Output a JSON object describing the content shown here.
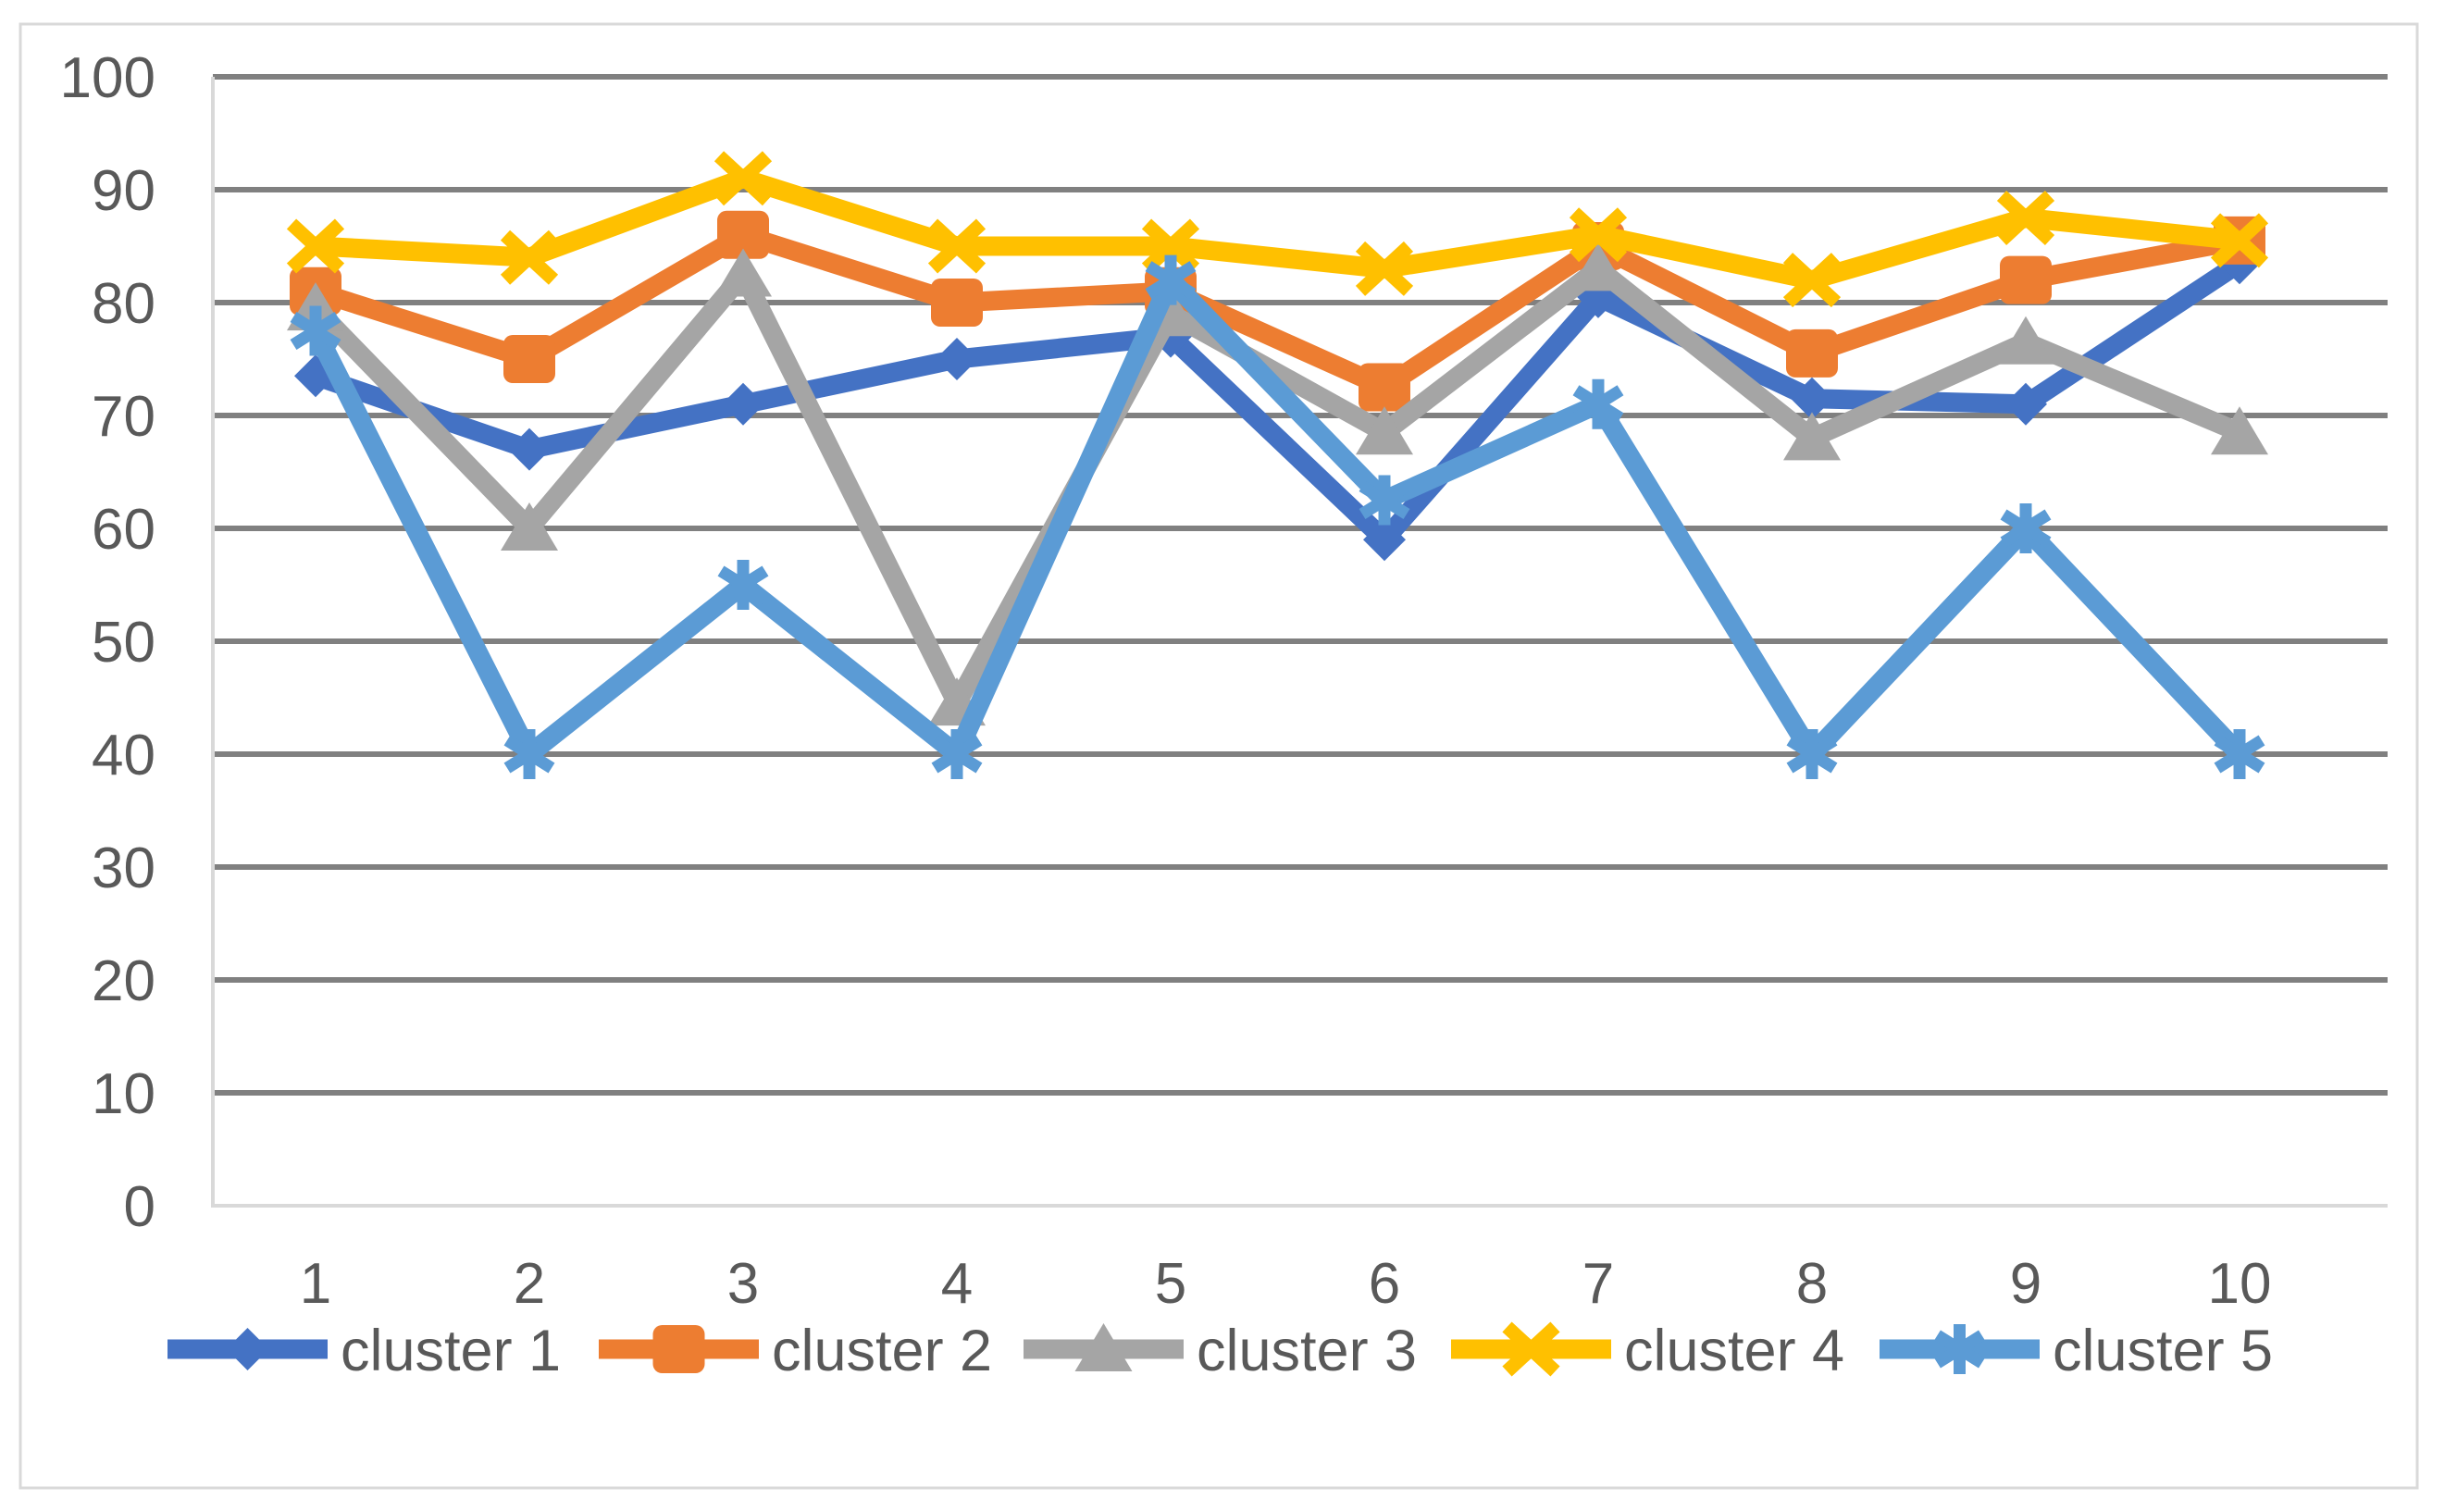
{
  "chart_data": {
    "type": "line",
    "title": "",
    "xlabel": "",
    "ylabel": "",
    "categories": [
      "1",
      "2",
      "3",
      "4",
      "5",
      "6",
      "7",
      "8",
      "9",
      "10"
    ],
    "y_ticks": [
      "0",
      "10",
      "20",
      "30",
      "40",
      "50",
      "60",
      "70",
      "80",
      "90",
      "100"
    ],
    "ylim": [
      0,
      100
    ],
    "grid": "horizontal",
    "legend_position": "bottom",
    "series": [
      {
        "name": "cluster 1",
        "color": "#4472C4",
        "marker": "diamond",
        "values": [
          73.5,
          67,
          71,
          75,
          77,
          59,
          80.5,
          71.5,
          71,
          83.5
        ]
      },
      {
        "name": "cluster 2",
        "color": "#ED7D31",
        "marker": "square",
        "values": [
          81,
          75,
          86,
          80,
          81,
          72.5,
          85,
          75.5,
          82,
          85.5
        ]
      },
      {
        "name": "cluster 3",
        "color": "#A5A5A5",
        "marker": "triangle",
        "values": [
          79.5,
          60,
          82.5,
          44.5,
          79,
          68.5,
          83,
          68,
          76.5,
          68.5
        ]
      },
      {
        "name": "cluster 4",
        "color": "#FFC000",
        "marker": "x",
        "values": [
          85,
          84,
          91,
          85,
          85,
          83,
          86,
          82,
          87.5,
          85.5
        ]
      },
      {
        "name": "cluster 5",
        "color": "#5B9BD5",
        "marker": "asterisk",
        "values": [
          77.5,
          40,
          55,
          40,
          82,
          62.5,
          71,
          40,
          60,
          40
        ]
      }
    ]
  },
  "colors": {
    "gridline": "#808080",
    "axis_text": "#595959",
    "plot_border": "#D9D9D9",
    "chart_border": "#D9D9D9",
    "background": "#FFFFFF"
  }
}
